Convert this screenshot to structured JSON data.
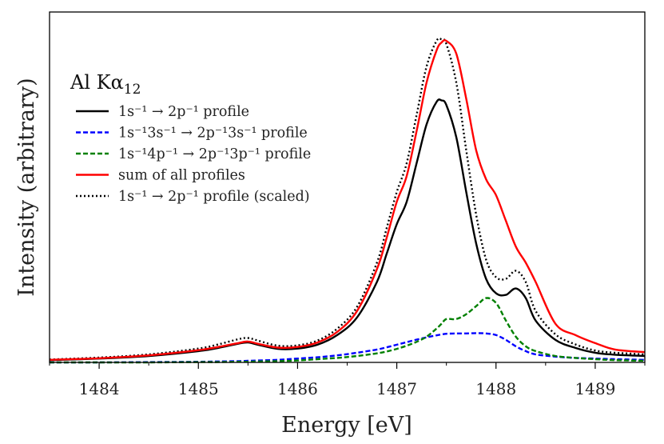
{
  "chart_data": {
    "type": "line",
    "title": "",
    "xlabel": "Energy [eV]",
    "ylabel": "Intensity (arbitrary)",
    "xlim": [
      1483.5,
      1489.5
    ],
    "ylim": [
      0,
      1.09
    ],
    "xticks": [
      1484,
      1485,
      1486,
      1487,
      1488,
      1489
    ],
    "xtick_labels": [
      "1484",
      "1485",
      "1486",
      "1487",
      "1488",
      "1489"
    ],
    "xticks_minor": [
      1483.5,
      1484.5,
      1485.5,
      1486.5,
      1487.5,
      1488.5,
      1489.5
    ],
    "yticks": [],
    "grid": false,
    "legend": {
      "position": "upper left",
      "title": "Al Kα12",
      "title_main": "Al Kα",
      "title_sub": "12",
      "entries": [
        {
          "label": "1s⁻¹ → 2p⁻¹ profile",
          "color": "#000000",
          "style": "solid"
        },
        {
          "label": "1s⁻¹3s⁻¹ → 2p⁻¹3s⁻¹ profile",
          "color": "#0000ff",
          "style": "dashed"
        },
        {
          "label": "1s⁻¹4p⁻¹ → 2p⁻¹3p⁻¹ profile",
          "color": "#008000",
          "style": "dashed"
        },
        {
          "label": "sum of all profiles",
          "color": "#ff0000",
          "style": "solid"
        },
        {
          "label": "1s⁻¹ → 2p⁻¹ profile (scaled)",
          "color": "#000000",
          "style": "dotted"
        }
      ]
    },
    "x": [
      1483.5,
      1484.0,
      1484.5,
      1485.0,
      1485.2,
      1485.4,
      1485.5,
      1485.6,
      1485.8,
      1486.0,
      1486.2,
      1486.4,
      1486.6,
      1486.8,
      1486.9,
      1487.0,
      1487.1,
      1487.2,
      1487.3,
      1487.4,
      1487.45,
      1487.5,
      1487.6,
      1487.7,
      1487.8,
      1487.9,
      1488.0,
      1488.1,
      1488.2,
      1488.3,
      1488.4,
      1488.6,
      1488.8,
      1489.0,
      1489.2,
      1489.5
    ],
    "series": [
      {
        "name": "1s⁻¹ → 2p⁻¹ profile",
        "color": "#000000",
        "style": "solid",
        "values": [
          0.007,
          0.012,
          0.02,
          0.035,
          0.045,
          0.058,
          0.062,
          0.055,
          0.042,
          0.043,
          0.055,
          0.085,
          0.14,
          0.25,
          0.34,
          0.43,
          0.5,
          0.62,
          0.74,
          0.81,
          0.815,
          0.8,
          0.7,
          0.53,
          0.37,
          0.26,
          0.215,
          0.21,
          0.23,
          0.2,
          0.13,
          0.07,
          0.045,
          0.03,
          0.024,
          0.02
        ]
      },
      {
        "name": "1s⁻¹3s⁻¹ → 2p⁻¹3s⁻¹ profile",
        "color": "#0000ff",
        "style": "dashed",
        "values": [
          0.0,
          0.0,
          0.001,
          0.002,
          0.003,
          0.004,
          0.005,
          0.006,
          0.008,
          0.012,
          0.016,
          0.022,
          0.03,
          0.04,
          0.047,
          0.055,
          0.063,
          0.071,
          0.078,
          0.084,
          0.087,
          0.089,
          0.09,
          0.09,
          0.091,
          0.09,
          0.085,
          0.07,
          0.05,
          0.035,
          0.025,
          0.018,
          0.014,
          0.012,
          0.01,
          0.008
        ]
      },
      {
        "name": "1s⁻¹4p⁻¹ → 2p⁻¹3p⁻¹ profile",
        "color": "#008000",
        "style": "dashed",
        "values": [
          0.0,
          0.0,
          0.0,
          0.001,
          0.001,
          0.002,
          0.002,
          0.003,
          0.004,
          0.006,
          0.01,
          0.014,
          0.02,
          0.028,
          0.034,
          0.042,
          0.052,
          0.064,
          0.08,
          0.105,
          0.12,
          0.135,
          0.135,
          0.15,
          0.175,
          0.2,
          0.185,
          0.13,
          0.08,
          0.05,
          0.035,
          0.02,
          0.014,
          0.01,
          0.007,
          0.005
        ]
      },
      {
        "name": "sum of all profiles",
        "color": "#ff0000",
        "style": "solid",
        "values": [
          0.008,
          0.013,
          0.022,
          0.038,
          0.048,
          0.06,
          0.065,
          0.058,
          0.046,
          0.048,
          0.062,
          0.095,
          0.16,
          0.29,
          0.39,
          0.5,
          0.58,
          0.72,
          0.87,
          0.97,
          0.995,
          1.0,
          0.96,
          0.82,
          0.66,
          0.57,
          0.52,
          0.44,
          0.36,
          0.31,
          0.25,
          0.12,
          0.085,
          0.06,
          0.04,
          0.032
        ]
      },
      {
        "name": "1s⁻¹ → 2p⁻¹ profile (scaled)",
        "color": "#000000",
        "style": "dotted",
        "values": [
          0.009,
          0.015,
          0.025,
          0.043,
          0.056,
          0.072,
          0.076,
          0.068,
          0.052,
          0.053,
          0.068,
          0.105,
          0.173,
          0.31,
          0.42,
          0.53,
          0.62,
          0.77,
          0.92,
          1.0,
          1.005,
          0.99,
          0.87,
          0.66,
          0.46,
          0.32,
          0.265,
          0.26,
          0.285,
          0.25,
          0.16,
          0.087,
          0.056,
          0.037,
          0.03,
          0.025
        ]
      }
    ]
  }
}
